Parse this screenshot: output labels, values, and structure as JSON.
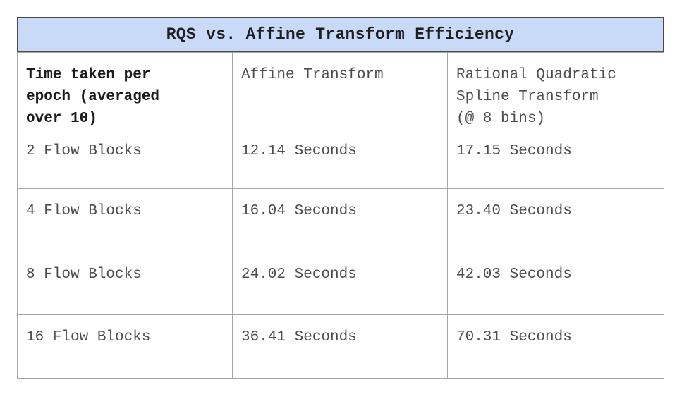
{
  "chart_data": {
    "type": "table",
    "title": "RQS vs. Affine Transform Efficiency",
    "columns": [
      "Time taken per epoch (averaged over 10)",
      "Affine Transform",
      "Rational Quadratic Spline Transform (@ 8 bins)"
    ],
    "header": {
      "c1": "Time taken per\nepoch (averaged\nover 10)",
      "c2": "Affine Transform",
      "c3": "Rational Quadratic\nSpline Transform\n(@ 8 bins)"
    },
    "rows": [
      {
        "c1": "2 Flow Blocks",
        "c2": "12.14 Seconds",
        "c3": "17.15 Seconds"
      },
      {
        "c1": "4 Flow Blocks",
        "c2": "16.04 Seconds",
        "c3": "23.40 Seconds"
      },
      {
        "c1": "8 Flow Blocks",
        "c2": "24.02 Seconds",
        "c3": "42.03 Seconds"
      },
      {
        "c1": "16 Flow Blocks",
        "c2": "36.41 Seconds",
        "c3": "70.31 Seconds"
      }
    ]
  }
}
